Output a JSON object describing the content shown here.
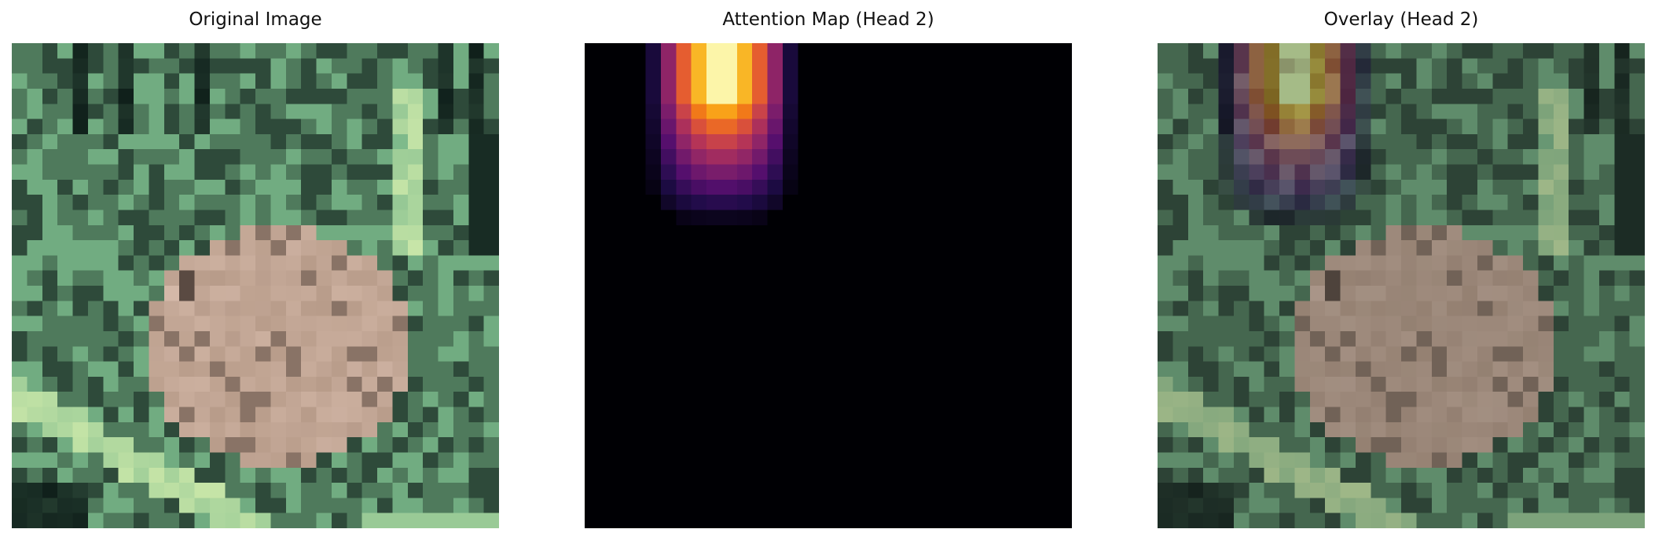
{
  "panels": [
    {
      "id": "original",
      "title": "Original Image",
      "kind": "photo"
    },
    {
      "id": "attention",
      "title": "Attention Map (Head 2)",
      "kind": "heatmap",
      "colormap": "inferno"
    },
    {
      "id": "overlay",
      "title": "Overlay (Head 2)",
      "kind": "overlay",
      "colormap": "inferno"
    }
  ],
  "photo_palette": {
    "foliage_dark": "#2e4a3a",
    "foliage_mid": "#4f7a5c",
    "foliage_light": "#7ab88a",
    "leaf_bright": "#c8e6a8",
    "frog_body": "#b89c8a",
    "frog_light": "#d4b8a8",
    "frog_dark": "#5a4a42",
    "shadow": "#0f1f1a"
  },
  "attention_colors": {
    "background": "#000004",
    "hot": "#fcfdbf"
  }
}
